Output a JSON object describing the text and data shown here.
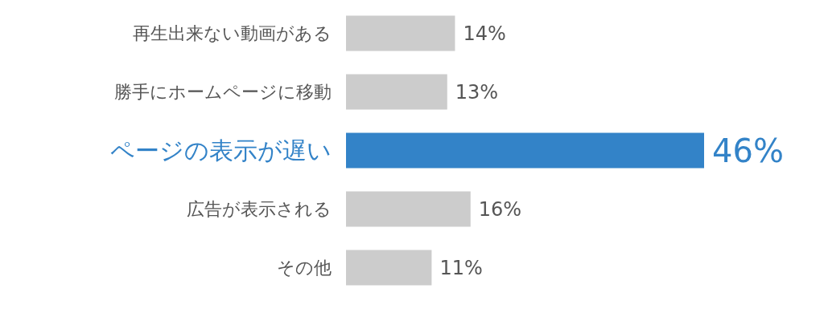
{
  "chart_data": {
    "type": "bar",
    "orientation": "horizontal",
    "categories": [
      "再生出来ない動画がある",
      "勝手にホームページに移動",
      "ページの表示が遅い",
      "広告が表示される",
      "その他"
    ],
    "values": [
      14,
      13,
      46,
      16,
      11
    ],
    "value_labels": [
      "14%",
      "13%",
      "46%",
      "16%",
      "11%"
    ],
    "colors": [
      "#cccccc",
      "#cccccc",
      "#3383c8",
      "#cccccc",
      "#cccccc"
    ]
  }
}
